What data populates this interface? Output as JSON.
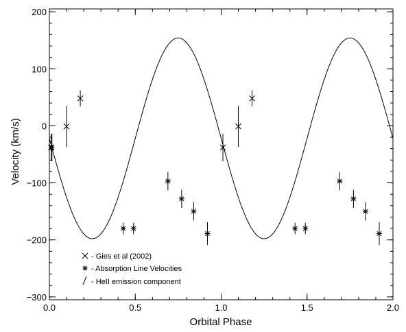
{
  "chart_data": {
    "type": "scatter",
    "title": "",
    "xlabel": "Orbital Phase",
    "ylabel": "Velocity (km/s)",
    "xlim": [
      0.0,
      2.0
    ],
    "ylim": [
      -305,
      205
    ],
    "x_ticks": [
      0.0,
      0.5,
      1.0,
      1.5,
      2.0
    ],
    "x_tick_labels": [
      "0.0",
      "0.5",
      "1.0",
      "1.5",
      "2.0"
    ],
    "y_ticks": [
      -300,
      -200,
      -100,
      0,
      100,
      200
    ],
    "y_tick_labels": [
      "−300",
      "−200",
      "−100",
      "0",
      "100",
      "200"
    ],
    "grid": false,
    "legend_placement": "bottom-left",
    "legend": [
      {
        "marker": "x",
        "label": "- Gies et al (2002)"
      },
      {
        "marker": "asterisk",
        "label": "- Absorption Line Velocities"
      },
      {
        "marker": "slash",
        "label": "- HeII emission component"
      }
    ],
    "model_curve": {
      "type": "sinusoid",
      "gamma": -22,
      "semi_amplitude": 176,
      "min_phase": 0.25,
      "max_phase": 0.75,
      "x_range": [
        0.0,
        2.0
      ]
    },
    "series": [
      {
        "name": "Gies et al (2002)",
        "marker": "x",
        "points": [
          {
            "x": 0.01,
            "y": -38,
            "err": 24
          },
          {
            "x": 0.1,
            "y": -1,
            "err": 36
          },
          {
            "x": 0.18,
            "y": 48,
            "err": 14
          },
          {
            "x": 1.01,
            "y": -38,
            "err": 24
          },
          {
            "x": 1.1,
            "y": -1,
            "err": 36
          },
          {
            "x": 1.18,
            "y": 48,
            "err": 14
          }
        ]
      },
      {
        "name": "Absorption Line Velocities",
        "marker": "asterisk",
        "points": [
          {
            "x": 0.015,
            "y": -38,
            "err": 24
          },
          {
            "x": 0.43,
            "y": -180,
            "err": 10
          },
          {
            "x": 0.49,
            "y": -180,
            "err": 10
          },
          {
            "x": 0.69,
            "y": -97,
            "err": 16
          },
          {
            "x": 0.77,
            "y": -128,
            "err": 16
          },
          {
            "x": 0.84,
            "y": -150,
            "err": 16
          },
          {
            "x": 0.92,
            "y": -189,
            "err": 20
          },
          {
            "x": 1.43,
            "y": -180,
            "err": 10
          },
          {
            "x": 1.49,
            "y": -180,
            "err": 10
          },
          {
            "x": 1.69,
            "y": -97,
            "err": 16
          },
          {
            "x": 1.77,
            "y": -128,
            "err": 16
          },
          {
            "x": 1.84,
            "y": -150,
            "err": 16
          },
          {
            "x": 1.92,
            "y": -189,
            "err": 20
          }
        ]
      }
    ]
  }
}
